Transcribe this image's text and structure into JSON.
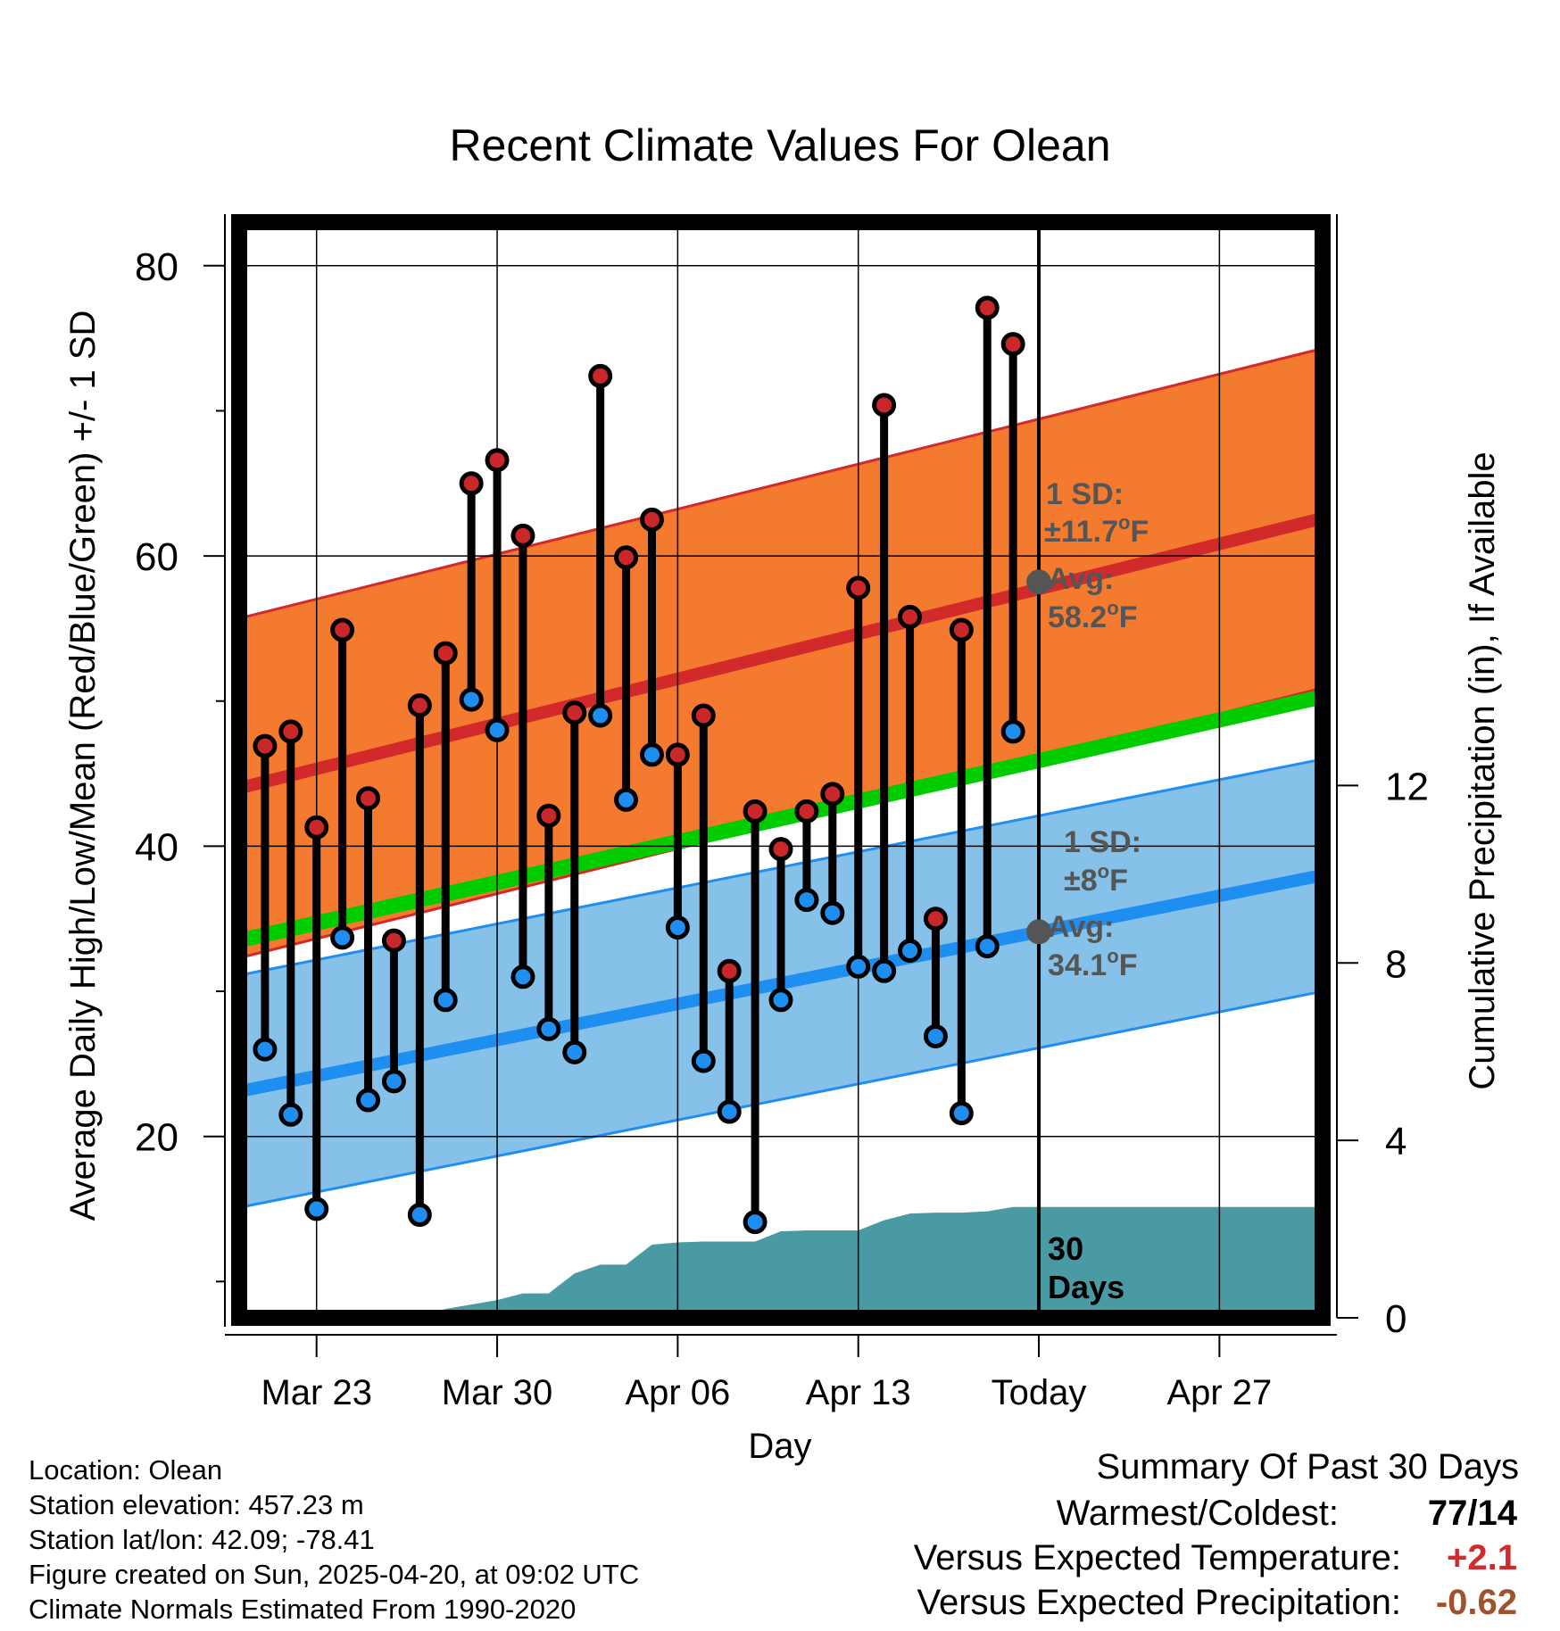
{
  "chart_data": {
    "type": "line",
    "title": "Recent Climate Values For Olean",
    "xlabel": "Day",
    "ylabel": "Average Daily High/Low/Mean (Red/Blue/Green) +/- 1 SD",
    "y2label": "Cumulative Precipitation (in), If Available",
    "x_start": "Mar 20",
    "x_end": "May 1",
    "today": "Apr 20",
    "xticks": [
      {
        "day": 3,
        "label": "Mar 23"
      },
      {
        "day": 10,
        "label": "Mar 30"
      },
      {
        "day": 17,
        "label": "Apr 06"
      },
      {
        "day": 24,
        "label": "Apr 13"
      },
      {
        "day": 31,
        "label": "Today"
      },
      {
        "day": 38,
        "label": "Apr 27"
      }
    ],
    "ylim": [
      7.5,
      83
    ],
    "yticks": [
      20,
      40,
      60,
      80
    ],
    "y2lim": [
      0,
      24.7
    ],
    "y2ticks": [
      0,
      4,
      8,
      12
    ],
    "normal_high": {
      "start": 44.0,
      "end": 62.6,
      "sd": 11.7
    },
    "normal_low": {
      "start": 23.1,
      "end": 38.0,
      "sd": 8
    },
    "normal_mean": {
      "start": 33.5,
      "end": 50.3
    },
    "daily": [
      {
        "day": "Mar 21",
        "high": 46.9,
        "low": 26.0
      },
      {
        "day": "Mar 22",
        "high": 47.9,
        "low": 21.5
      },
      {
        "day": "Mar 23",
        "high": 41.3,
        "low": 15.0
      },
      {
        "day": "Mar 24",
        "high": 54.9,
        "low": 33.7
      },
      {
        "day": "Mar 25",
        "high": 43.3,
        "low": 22.5
      },
      {
        "day": "Mar 26",
        "high": 33.5,
        "low": 23.8
      },
      {
        "day": "Mar 27",
        "high": 49.7,
        "low": 14.6
      },
      {
        "day": "Mar 28",
        "high": 53.3,
        "low": 29.4
      },
      {
        "day": "Mar 29",
        "high": 65.0,
        "low": 50.1
      },
      {
        "day": "Mar 30",
        "high": 66.6,
        "low": 48.0
      },
      {
        "day": "Mar 31",
        "high": 61.4,
        "low": 31.0
      },
      {
        "day": "Apr 01",
        "high": 42.1,
        "low": 27.4
      },
      {
        "day": "Apr 02",
        "high": 49.2,
        "low": 25.8
      },
      {
        "day": "Apr 03",
        "high": 72.4,
        "low": 49.0
      },
      {
        "day": "Apr 04",
        "high": 59.9,
        "low": 43.2
      },
      {
        "day": "Apr 05",
        "high": 62.5,
        "low": 46.3
      },
      {
        "day": "Apr 06",
        "high": 46.3,
        "low": 34.4
      },
      {
        "day": "Apr 07",
        "high": 49.0,
        "low": 25.2
      },
      {
        "day": "Apr 08",
        "high": 31.4,
        "low": 21.7
      },
      {
        "day": "Apr 09",
        "high": 42.4,
        "low": 14.1
      },
      {
        "day": "Apr 10",
        "high": 39.8,
        "low": 29.4
      },
      {
        "day": "Apr 11",
        "high": 42.4,
        "low": 36.3
      },
      {
        "day": "Apr 12",
        "high": 43.6,
        "low": 35.4
      },
      {
        "day": "Apr 13",
        "high": 57.8,
        "low": 31.7
      },
      {
        "day": "Apr 14",
        "high": 70.4,
        "low": 31.4
      },
      {
        "day": "Apr 15",
        "high": 55.8,
        "low": 32.8
      },
      {
        "day": "Apr 16",
        "high": 35.0,
        "low": 26.9
      },
      {
        "day": "Apr 17",
        "high": 54.9,
        "low": 21.6
      },
      {
        "day": "Apr 18",
        "high": 77.1,
        "low": 33.1
      },
      {
        "day": "Apr 19",
        "high": 74.6,
        "low": 47.9
      }
    ],
    "precip_cumulative": [
      {
        "day": "Mar 20",
        "value": 0
      },
      {
        "day": "Mar 27",
        "value": 0
      },
      {
        "day": "Mar 28",
        "value": 0.2
      },
      {
        "day": "Mar 29",
        "value": 0.3
      },
      {
        "day": "Mar 30",
        "value": 0.4
      },
      {
        "day": "Mar 31",
        "value": 0.55
      },
      {
        "day": "Apr 01",
        "value": 0.55
      },
      {
        "day": "Apr 02",
        "value": 1.0
      },
      {
        "day": "Apr 03",
        "value": 1.2
      },
      {
        "day": "Apr 04",
        "value": 1.2
      },
      {
        "day": "Apr 05",
        "value": 1.65
      },
      {
        "day": "Apr 06",
        "value": 1.7
      },
      {
        "day": "Apr 07",
        "value": 1.72
      },
      {
        "day": "Apr 08",
        "value": 1.72
      },
      {
        "day": "Apr 09",
        "value": 1.72
      },
      {
        "day": "Apr 10",
        "value": 1.95
      },
      {
        "day": "Apr 11",
        "value": 1.97
      },
      {
        "day": "Apr 12",
        "value": 1.97
      },
      {
        "day": "Apr 13",
        "value": 1.97
      },
      {
        "day": "Apr 14",
        "value": 2.2
      },
      {
        "day": "Apr 15",
        "value": 2.35
      },
      {
        "day": "Apr 16",
        "value": 2.37
      },
      {
        "day": "Apr 17",
        "value": 2.37
      },
      {
        "day": "Apr 18",
        "value": 2.4
      },
      {
        "day": "Apr 19",
        "value": 2.5
      },
      {
        "day": "Apr 20",
        "value": 2.5
      },
      {
        "day": "May 1",
        "value": 2.5
      }
    ],
    "annotations": {
      "high_sd": {
        "line1": "1 SD:",
        "pm": "±",
        "value": "11.7",
        "unit": "F"
      },
      "high_avg": {
        "line1": "Avg:",
        "value": "58.2",
        "unit": "F"
      },
      "low_sd": {
        "line1": "1 SD:",
        "pm": "±",
        "value": "8",
        "unit": "F"
      },
      "low_avg": {
        "line1": "Avg:",
        "value": "34.1",
        "unit": "F"
      },
      "degree_symbol": "o",
      "precip_label_line1": "30",
      "precip_label_line2": "Days"
    },
    "colors": {
      "high_band": "#f47a2f",
      "high_line": "#d22a2a",
      "low_band": "#85c1e8",
      "low_line": "#1f8ef1",
      "mean_line": "#00cc00",
      "precip_fill": "#4a9aa3",
      "high_marker": "#c9272a",
      "low_marker": "#1f8ef1",
      "avg_marker": "#555555",
      "annotation_text": "#555555"
    }
  },
  "info": {
    "location": "Location: Olean",
    "elevation": "Station elevation: 457.23 m",
    "latlon": "Station lat/lon: 42.09; -78.41",
    "created": "Figure created on Sun, 2025-04-20, at 09:02 UTC",
    "normals": "Climate Normals Estimated From 1990-2020"
  },
  "summary": {
    "title": "Summary Of Past 30 Days",
    "warmest_coldest_label": "Warmest/Coldest:",
    "warmest_coldest_value": "77/14",
    "temp_label": "Versus Expected Temperature:",
    "temp_value": "+2.1",
    "temp_color": "#d22a2a",
    "precip_label": "Versus Expected Precipitation:",
    "precip_value": "-0.62",
    "precip_color": "#a0522d"
  }
}
